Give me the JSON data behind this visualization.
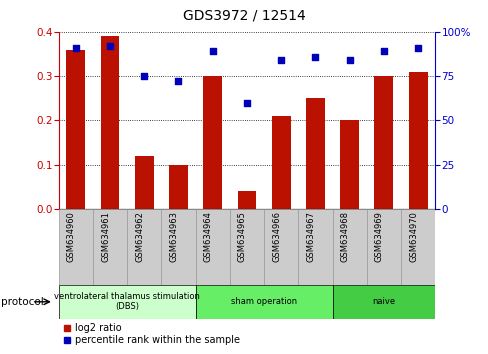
{
  "title": "GDS3972 / 12514",
  "samples": [
    "GSM634960",
    "GSM634961",
    "GSM634962",
    "GSM634963",
    "GSM634964",
    "GSM634965",
    "GSM634966",
    "GSM634967",
    "GSM634968",
    "GSM634969",
    "GSM634970"
  ],
  "log2_ratio": [
    0.36,
    0.39,
    0.12,
    0.1,
    0.3,
    0.04,
    0.21,
    0.25,
    0.2,
    0.3,
    0.31
  ],
  "percentile_rank": [
    91,
    92,
    75,
    72,
    89,
    60,
    84,
    86,
    84,
    89,
    91
  ],
  "bar_color": "#bb1100",
  "dot_color": "#0000bb",
  "ylim_left": [
    0,
    0.4
  ],
  "ylim_right": [
    0,
    100
  ],
  "yticks_left": [
    0,
    0.1,
    0.2,
    0.3,
    0.4
  ],
  "yticks_right": [
    0,
    25,
    50,
    75,
    100
  ],
  "protocol_groups": [
    {
      "label": "ventrolateral thalamus stimulation\n(DBS)",
      "start": 0,
      "end": 3,
      "color": "#ccffcc"
    },
    {
      "label": "sham operation",
      "start": 4,
      "end": 7,
      "color": "#66ee66"
    },
    {
      "label": "naive",
      "start": 8,
      "end": 10,
      "color": "#44cc44"
    }
  ],
  "legend_bar_label": "log2 ratio",
  "legend_dot_label": "percentile rank within the sample",
  "left_axis_color": "#cc0000",
  "right_axis_color": "#0000cc",
  "protocol_label": "protocol",
  "xtick_bg_color": "#cccccc",
  "xtick_border_color": "#999999"
}
